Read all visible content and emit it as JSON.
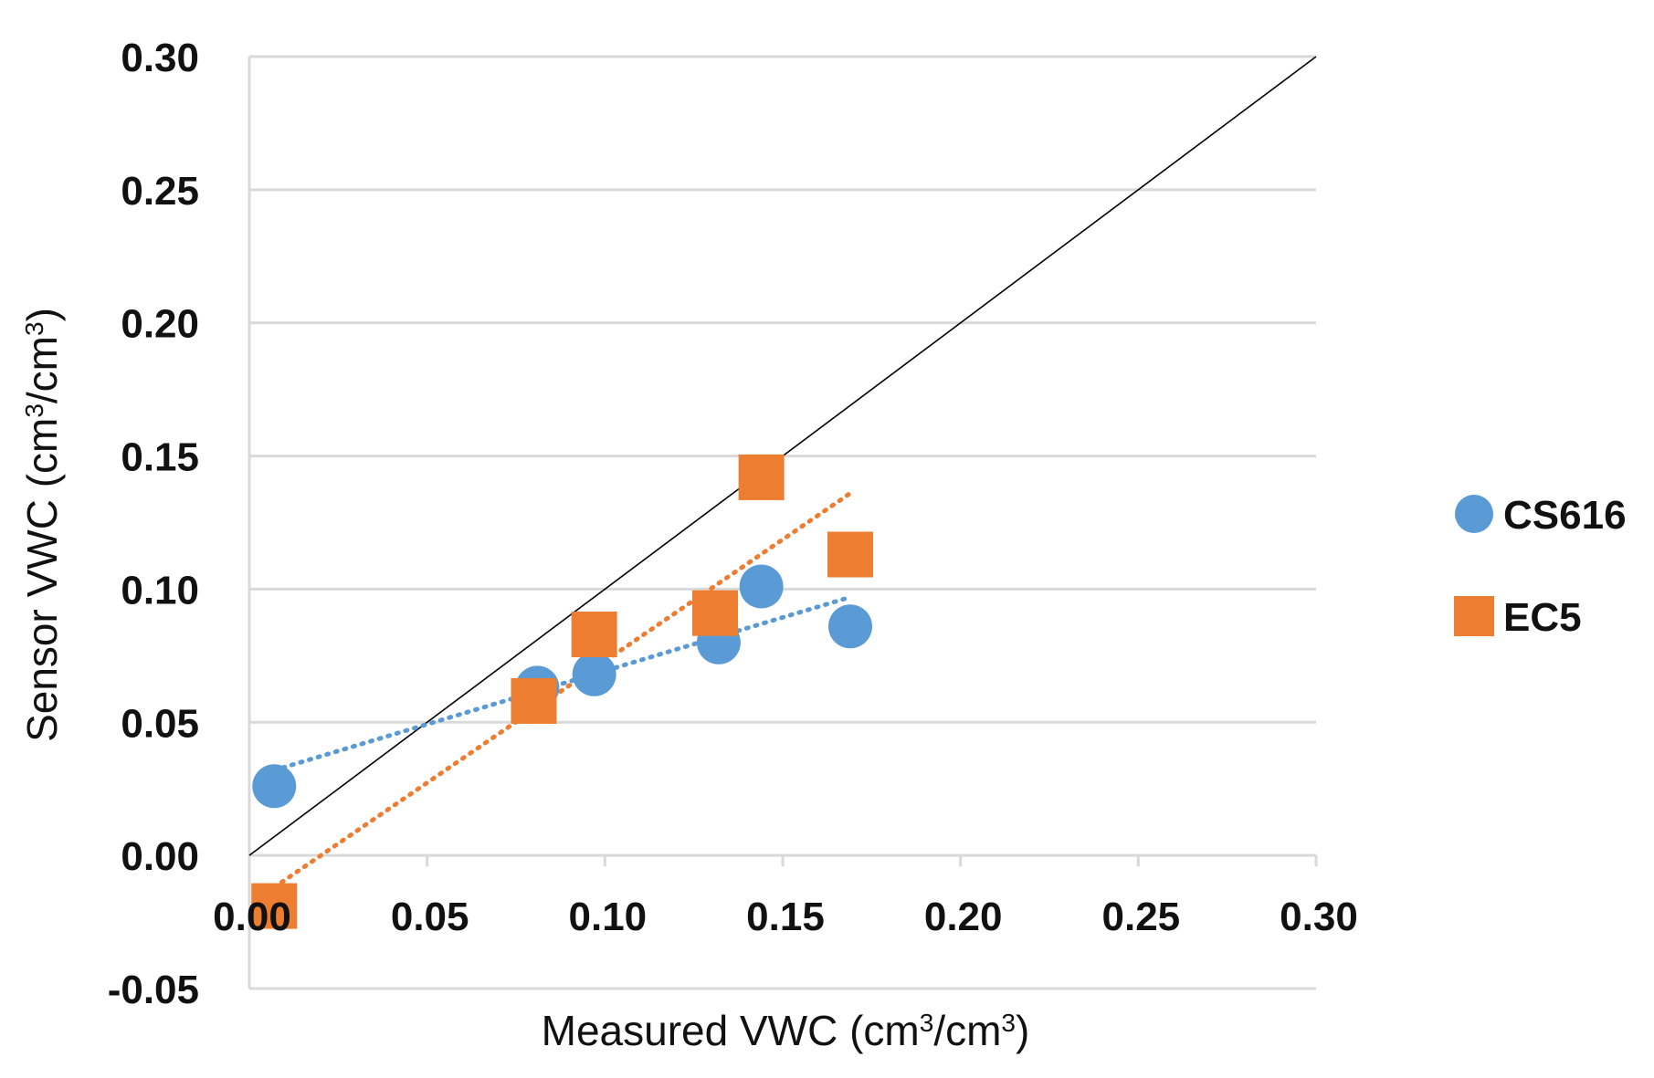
{
  "chart_data": {
    "type": "scatter",
    "title": "",
    "xlabel": {
      "prefix": "Measured VWC (cm",
      "sup1": "3",
      "mid": "/cm",
      "sup2": "3",
      "suffix": ")"
    },
    "ylabel": {
      "prefix": "Sensor VWC (cm",
      "sup1": "3",
      "mid": "/cm",
      "sup2": "3",
      "suffix": ")"
    },
    "xlim": [
      0,
      0.3
    ],
    "ylim": [
      -0.05,
      0.3
    ],
    "x_ticks": [
      0.0,
      0.05,
      0.1,
      0.15,
      0.2,
      0.25,
      0.3
    ],
    "x_tick_labels": [
      "0.00",
      "0.05",
      "0.10",
      "0.15",
      "0.20",
      "0.25",
      "0.30"
    ],
    "y_ticks": [
      -0.05,
      0.0,
      0.05,
      0.1,
      0.15,
      0.2,
      0.25,
      0.3
    ],
    "y_tick_labels": [
      "-0.05",
      "0.00",
      "0.05",
      "0.10",
      "0.15",
      "0.20",
      "0.25",
      "0.30"
    ],
    "grid": true,
    "legend_position": "right",
    "one_to_one_line": {
      "from": [
        0,
        0
      ],
      "to": [
        0.3,
        0.3
      ],
      "color": "#000000"
    },
    "series": [
      {
        "name": "CS616",
        "marker": "circle",
        "color": "#5B9BD5",
        "points": [
          [
            0.007,
            0.026
          ],
          [
            0.081,
            0.063
          ],
          [
            0.097,
            0.068
          ],
          [
            0.132,
            0.08
          ],
          [
            0.144,
            0.101
          ],
          [
            0.169,
            0.086
          ]
        ],
        "trendline": {
          "from": [
            0.007,
            0.032
          ],
          "to": [
            0.169,
            0.097
          ],
          "style": "dotted"
        }
      },
      {
        "name": "EC5",
        "marker": "square",
        "color": "#ED7D31",
        "points": [
          [
            0.007,
            -0.019
          ],
          [
            0.08,
            0.058
          ],
          [
            0.097,
            0.083
          ],
          [
            0.131,
            0.091
          ],
          [
            0.144,
            0.142
          ],
          [
            0.169,
            0.113
          ]
        ],
        "trendline": {
          "from": [
            0.007,
            -0.012
          ],
          "to": [
            0.169,
            0.136
          ],
          "style": "dotted"
        }
      }
    ]
  }
}
